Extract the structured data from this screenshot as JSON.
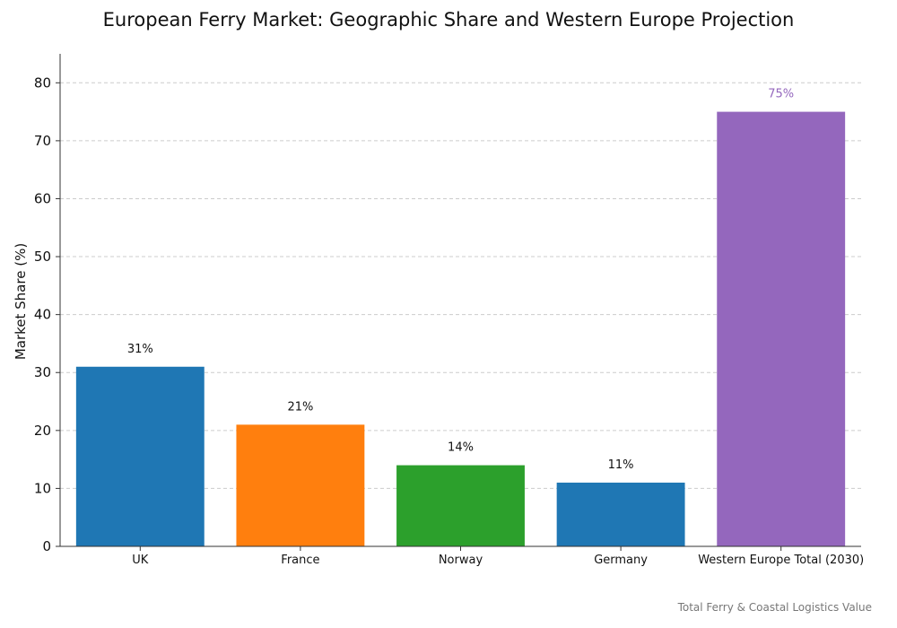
{
  "chart_data": {
    "type": "bar",
    "title": "European Ferry Market: Geographic Share and Western Europe Projection",
    "ylabel": "Market Share (%)",
    "xlabel": "",
    "ylim": [
      0,
      85
    ],
    "yticks": [
      0,
      10,
      20,
      30,
      40,
      50,
      60,
      70,
      80
    ],
    "grid": true,
    "categories": [
      "UK",
      "France",
      "Norway",
      "Germany",
      "Western Europe Total (2030)"
    ],
    "values": [
      31,
      21,
      14,
      11,
      75
    ],
    "data_labels": [
      "31%",
      "21%",
      "14%",
      "11%",
      "75%"
    ],
    "colors": [
      "#1f77b4",
      "#ff7f0e",
      "#2ca02c",
      "#1f77b4",
      "#9467bd"
    ],
    "label_colors": [
      "#111111",
      "#111111",
      "#111111",
      "#111111",
      "#9467bd"
    ],
    "footnote": "Total Ferry & Coastal Logistics Value"
  }
}
